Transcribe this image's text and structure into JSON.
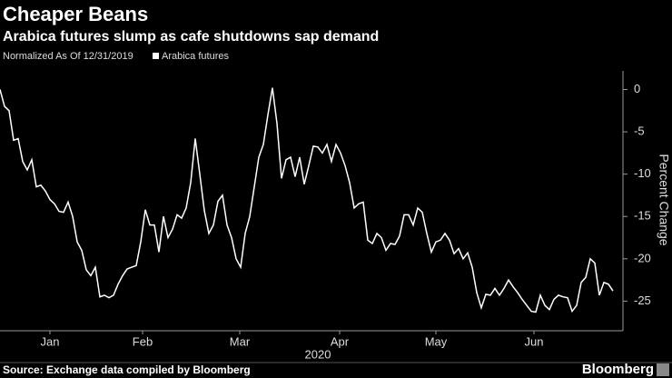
{
  "chart_data": {
    "type": "line",
    "title": "Cheaper Beans",
    "subtitle": "Arabica futures slump as cafe shutdowns sap demand",
    "note": "Normalized As Of 12/31/2019",
    "y_label": "Percent Change",
    "x_label": "2020",
    "source": "Source: Exchange data compiled by Bloomberg",
    "brand": "Bloomberg",
    "series": [
      {
        "name": "Arabica futures",
        "color": "#ffffff",
        "values": [
          0,
          -2,
          -2.5,
          -6,
          -5.8,
          -8.5,
          -9.5,
          -8.3,
          -11.5,
          -11.3,
          -12,
          -13,
          -13.5,
          -14.4,
          -14.5,
          -13.3,
          -15,
          -18,
          -19,
          -21.3,
          -22,
          -21,
          -24.5,
          -24.3,
          -24.6,
          -24.3,
          -23,
          -22,
          -21.2,
          -21,
          -20.8,
          -18,
          -14.2,
          -16,
          -16,
          -19.2,
          -15,
          -17.5,
          -16.5,
          -14.8,
          -15.2,
          -14,
          -11,
          -5.8,
          -10,
          -14.3,
          -17,
          -16,
          -13.2,
          -12.5,
          -16,
          -17.5,
          -20,
          -21,
          -17,
          -15,
          -11.5,
          -8,
          -6.5,
          -3,
          0.2,
          -4,
          -10.5,
          -8.3,
          -8,
          -10.3,
          -8,
          -11.2,
          -9,
          -6.7,
          -6.8,
          -7.5,
          -6.5,
          -8.5,
          -6.5,
          -7.5,
          -9,
          -11,
          -14,
          -13.5,
          -13.3,
          -17.8,
          -18.2,
          -17,
          -17.5,
          -19,
          -18.2,
          -18.3,
          -17.3,
          -14.8,
          -14.8,
          -16,
          -14,
          -14.5,
          -17,
          -19.2,
          -18,
          -17.8,
          -17,
          -17.8,
          -19.4,
          -18.8,
          -20,
          -19.3,
          -21,
          -24,
          -25.8,
          -24.2,
          -24.3,
          -23.5,
          -24.3,
          -23.5,
          -22.5,
          -23.3,
          -24,
          -24.8,
          -25.5,
          -26.2,
          -26.3,
          -24.3,
          -25.5,
          -26,
          -24.8,
          -24.3,
          -24.5,
          -24.6,
          -26.2,
          -25.5,
          -22.8,
          -22.2,
          -20,
          -20.5,
          -24.3,
          -22.8,
          -23,
          -23.8
        ]
      }
    ],
    "xlim": [
      0,
      137.2
    ],
    "xticks": [
      {
        "value": 11,
        "label": "Jan"
      },
      {
        "value": 31.4,
        "label": "Feb"
      },
      {
        "value": 52.8,
        "label": "Mar"
      },
      {
        "value": 74.8,
        "label": "Apr"
      },
      {
        "value": 96,
        "label": "May"
      },
      {
        "value": 117.6,
        "label": "Jun"
      }
    ],
    "ylim": [
      -28.5,
      2.2
    ],
    "yticks": [
      0,
      -5,
      -10,
      -15,
      -20,
      -25
    ]
  }
}
